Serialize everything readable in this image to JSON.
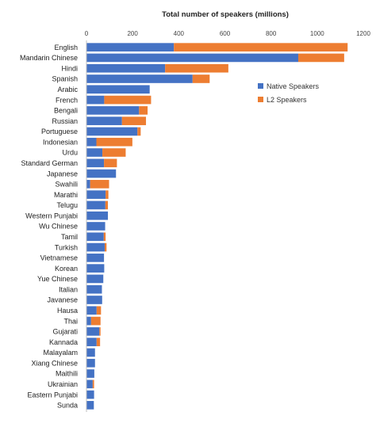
{
  "chart_data": {
    "type": "bar",
    "orientation": "horizontal",
    "stacked": true,
    "title": "Total number of speakers (millions)",
    "xlabel": "",
    "ylabel": "",
    "xlim": [
      0,
      1200
    ],
    "xticks": [
      0,
      200,
      400,
      600,
      800,
      1000,
      1200
    ],
    "x_axis_position": "top",
    "grid": false,
    "legend_position": "right",
    "categories": [
      "English",
      "Mandarin Chinese",
      "Hindi",
      "Spanish",
      "Arabic",
      "French",
      "Bengali",
      "Russian",
      "Portuguese",
      "Indonesian",
      "Urdu",
      "Standard German",
      "Japanese",
      "Swahili",
      "Marathi",
      "Telugu",
      "Western Punjabi",
      "Wu Chinese",
      "Tamil",
      "Turkish",
      "Vietnamese",
      "Korean",
      "Yue Chinese",
      "Italian",
      "Javanese",
      "Hausa",
      "Thai",
      "Gujarati",
      "Kannada",
      "Malayalam",
      "Xiang Chinese",
      "Maithili",
      "Ukrainian",
      "Eastern Punjabi",
      "Sunda"
    ],
    "series": [
      {
        "name": "Native Speakers",
        "color": "#4472C4",
        "values": [
          379,
          918,
          341,
          460,
          274,
          77,
          228,
          154,
          221,
          43,
          69,
          76,
          128,
          16,
          83,
          82,
          93,
          81,
          75,
          79,
          76,
          77,
          73,
          67,
          68,
          44,
          20,
          56,
          44,
          37,
          37,
          34,
          27,
          33,
          32
        ]
      },
      {
        "name": "L2 Speakers",
        "color": "#ED7D31",
        "values": [
          753,
          199,
          274,
          74,
          0,
          203,
          37,
          104,
          14,
          156,
          101,
          56,
          0,
          82,
          12,
          11,
          0,
          0,
          8,
          8,
          0,
          0,
          0,
          0,
          0,
          19,
          41,
          5,
          15,
          0,
          0,
          0,
          6,
          0,
          0
        ]
      }
    ]
  }
}
